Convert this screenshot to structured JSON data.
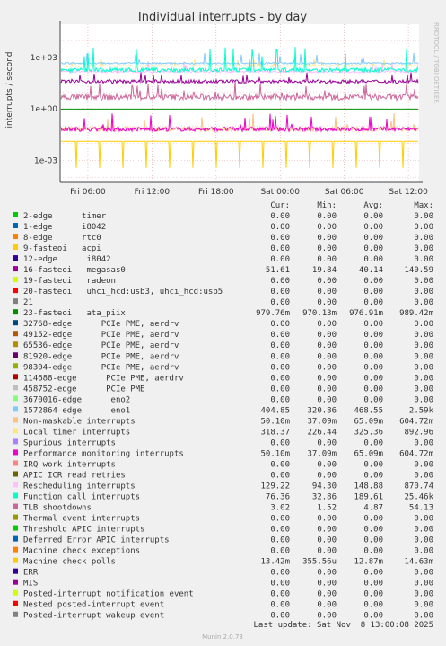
{
  "title": "Individual interrupts - by day",
  "watermark": "RRDTOOL / TOBI OETIKER",
  "footer": "Munin 2.0.73",
  "last_update": "Last update: Sat Nov  8 13:00:08 2025",
  "legend_headers": [
    "Cur:",
    "Min:",
    "Avg:",
    "Max:"
  ],
  "chart_data": {
    "type": "line",
    "title": "Individual interrupts - by day",
    "ylabel": "interrupts / second",
    "yscale": "log",
    "yticks": [
      {
        "v": 1000,
        "label": "1e+03"
      },
      {
        "v": 1,
        "label": "1e+00"
      },
      {
        "v": 0.001,
        "label": "1e-03"
      }
    ],
    "ylim": [
      5e-05,
      90000
    ],
    "xticks": [
      "Fri 06:00",
      "Fri 12:00",
      "Fri 18:00",
      "Sat 00:00",
      "Sat 06:00",
      "Sat 12:00"
    ],
    "xlim_hours": [
      3.4,
      37.0
    ],
    "series": [
      {
        "name": "2-edge      timer",
        "color": "#00cc00",
        "cur": "0.00",
        "min": "0.00",
        "avg": "0.00",
        "max": "0.00"
      },
      {
        "name": "1-edge      i8042",
        "color": "#0066b3",
        "cur": "0.00",
        "min": "0.00",
        "avg": "0.00",
        "max": "0.00"
      },
      {
        "name": "8-edge      rtc0",
        "color": "#ff8000",
        "cur": "0.00",
        "min": "0.00",
        "avg": "0.00",
        "max": "0.00"
      },
      {
        "name": "9-fasteoi   acpi",
        "color": "#ffcc00",
        "cur": "0.00",
        "min": "0.00",
        "avg": "0.00",
        "max": "0.00"
      },
      {
        "name": "12-edge      i8042",
        "color": "#330099",
        "cur": "0.00",
        "min": "0.00",
        "avg": "0.00",
        "max": "0.00"
      },
      {
        "name": "16-fasteoi   megasas0",
        "color": "#990099",
        "cur": "51.61",
        "min": "19.84",
        "avg": "40.14",
        "max": "140.59"
      },
      {
        "name": "19-fasteoi   radeon",
        "color": "#ccff00",
        "cur": "0.00",
        "min": "0.00",
        "avg": "0.00",
        "max": "0.00"
      },
      {
        "name": "20-fasteoi   uhci_hcd:usb3, uhci_hcd:usb5",
        "color": "#ff0000",
        "cur": "0.00",
        "min": "0.00",
        "avg": "0.00",
        "max": "0.00"
      },
      {
        "name": "21",
        "color": "#808080",
        "cur": "0.00",
        "min": "0.00",
        "avg": "0.00",
        "max": "0.00"
      },
      {
        "name": "23-fasteoi   ata_piix",
        "color": "#008f00",
        "cur": "979.76m",
        "min": "970.13m",
        "avg": "976.91m",
        "max": "989.42m"
      },
      {
        "name": "32768-edge      PCIe PME, aerdrv",
        "color": "#00487d",
        "cur": "0.00",
        "min": "0.00",
        "avg": "0.00",
        "max": "0.00"
      },
      {
        "name": "49152-edge      PCIe PME, aerdrv",
        "color": "#b35a00",
        "cur": "0.00",
        "min": "0.00",
        "avg": "0.00",
        "max": "0.00"
      },
      {
        "name": "65536-edge      PCIe PME, aerdrv",
        "color": "#b38f00",
        "cur": "0.00",
        "min": "0.00",
        "avg": "0.00",
        "max": "0.00"
      },
      {
        "name": "81920-edge      PCIe PME, aerdrv",
        "color": "#6b006b",
        "cur": "0.00",
        "min": "0.00",
        "avg": "0.00",
        "max": "0.00"
      },
      {
        "name": "98304-edge      PCIe PME, aerdrv",
        "color": "#8fb300",
        "cur": "0.00",
        "min": "0.00",
        "avg": "0.00",
        "max": "0.00"
      },
      {
        "name": "114688-edge      PCIe PME, aerdrv",
        "color": "#b30000",
        "cur": "0.00",
        "min": "0.00",
        "avg": "0.00",
        "max": "0.00"
      },
      {
        "name": "458752-edge      PCIe PME",
        "color": "#bebebe",
        "cur": "0.00",
        "min": "0.00",
        "avg": "0.00",
        "max": "0.00"
      },
      {
        "name": "3670016-edge      eno2",
        "color": "#80ff80",
        "cur": "0.00",
        "min": "0.00",
        "avg": "0.00",
        "max": "0.00"
      },
      {
        "name": "1572864-edge      eno1",
        "color": "#80c9ff",
        "cur": "404.85",
        "min": "320.86",
        "avg": "468.55",
        "max": "2.59k"
      },
      {
        "name": "Non-maskable interrupts",
        "color": "#ffc080",
        "cur": "50.10m",
        "min": "37.09m",
        "avg": "65.09m",
        "max": "604.72m"
      },
      {
        "name": "Local timer interrupts",
        "color": "#ffe680",
        "cur": "318.37",
        "min": "226.44",
        "avg": "325.36",
        "max": "892.96"
      },
      {
        "name": "Spurious interrupts",
        "color": "#aa80ff",
        "cur": "0.00",
        "min": "0.00",
        "avg": "0.00",
        "max": "0.00"
      },
      {
        "name": "Performance monitoring interrupts",
        "color": "#ee00cc",
        "cur": "50.10m",
        "min": "37.09m",
        "avg": "65.09m",
        "max": "604.72m"
      },
      {
        "name": "IRQ work interrupts",
        "color": "#ff8080",
        "cur": "0.00",
        "min": "0.00",
        "avg": "0.00",
        "max": "0.00"
      },
      {
        "name": "APIC ICR read retries",
        "color": "#666600",
        "cur": "0.00",
        "min": "0.00",
        "avg": "0.00",
        "max": "0.00"
      },
      {
        "name": "Rescheduling interrupts",
        "color": "#ffbfff",
        "cur": "129.22",
        "min": "94.30",
        "avg": "148.88",
        "max": "870.74"
      },
      {
        "name": "Function call interrupts",
        "color": "#00ffcc",
        "cur": "76.36",
        "min": "32.86",
        "avg": "189.61",
        "max": "25.46k"
      },
      {
        "name": "TLB shootdowns",
        "color": "#cc6699",
        "cur": "3.02",
        "min": "1.52",
        "avg": "4.87",
        "max": "54.13"
      },
      {
        "name": "Thermal event interrupts",
        "color": "#999900",
        "cur": "0.00",
        "min": "0.00",
        "avg": "0.00",
        "max": "0.00"
      },
      {
        "name": "Threshold APIC interrupts",
        "color": "#00cc00",
        "cur": "0.00",
        "min": "0.00",
        "avg": "0.00",
        "max": "0.00"
      },
      {
        "name": "Deferred Error APIC interrupts",
        "color": "#0066b3",
        "cur": "0.00",
        "min": "0.00",
        "avg": "0.00",
        "max": "0.00"
      },
      {
        "name": "Machine check exceptions",
        "color": "#ff8000",
        "cur": "0.00",
        "min": "0.00",
        "avg": "0.00",
        "max": "0.00"
      },
      {
        "name": "Machine check polls",
        "color": "#ffcc00",
        "cur": "13.42m",
        "min": "355.56u",
        "avg": "12.87m",
        "max": "14.63m"
      },
      {
        "name": "ERR",
        "color": "#330099",
        "cur": "0.00",
        "min": "0.00",
        "avg": "0.00",
        "max": "0.00"
      },
      {
        "name": "MIS",
        "color": "#990099",
        "cur": "0.00",
        "min": "0.00",
        "avg": "0.00",
        "max": "0.00"
      },
      {
        "name": "Posted-interrupt notification event",
        "color": "#ccff00",
        "cur": "0.00",
        "min": "0.00",
        "avg": "0.00",
        "max": "0.00"
      },
      {
        "name": "Nested posted-interrupt event",
        "color": "#ff0000",
        "cur": "0.00",
        "min": "0.00",
        "avg": "0.00",
        "max": "0.00"
      },
      {
        "name": "Posted-interrupt wakeup event",
        "color": "#808080",
        "cur": "0.00",
        "min": "0.00",
        "avg": "0.00",
        "max": "0.00"
      }
    ]
  }
}
